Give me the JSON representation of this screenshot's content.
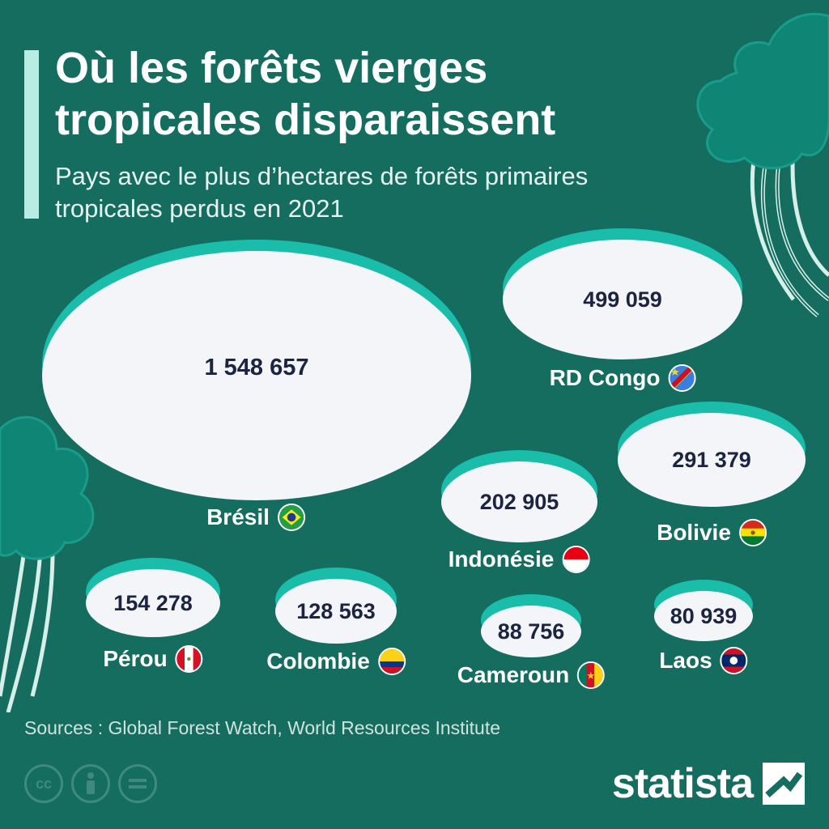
{
  "title": "Où les forêts vierges tropicales disparaissent",
  "subtitle": "Pays avec le plus d’hectares de forêts primaires tropicales perdus en 2021",
  "chart_data": {
    "type": "bubble",
    "categories": [
      "Brésil",
      "RD Congo",
      "Bolivie",
      "Indonésie",
      "Pérou",
      "Colombie",
      "Cameroun",
      "Laos"
    ],
    "values": [
      1548657,
      499059,
      291379,
      202905,
      154278,
      128563,
      88756,
      80939
    ],
    "value_labels": [
      "1 548 657",
      "499 059",
      "291 379",
      "202 905",
      "154 278",
      "128 563",
      "88 756",
      "80 939"
    ],
    "flags": [
      "brazil-flag-icon",
      "dr-congo-flag-icon",
      "bolivia-flag-icon",
      "indonesia-flag-icon",
      "peru-flag-icon",
      "colombia-flag-icon",
      "cameroon-flag-icon",
      "laos-flag-icon"
    ],
    "colors": {
      "background": "#156d5f",
      "bubble": "#f3f5f8",
      "bubble_rim": "#1abcaa",
      "value_text": "#1b2440"
    }
  },
  "source": "Sources : Global Forest Watch, World Resources Institute",
  "brand": "statista",
  "license_icons": [
    "cc-icon",
    "attribution-icon",
    "no-derivatives-icon"
  ]
}
